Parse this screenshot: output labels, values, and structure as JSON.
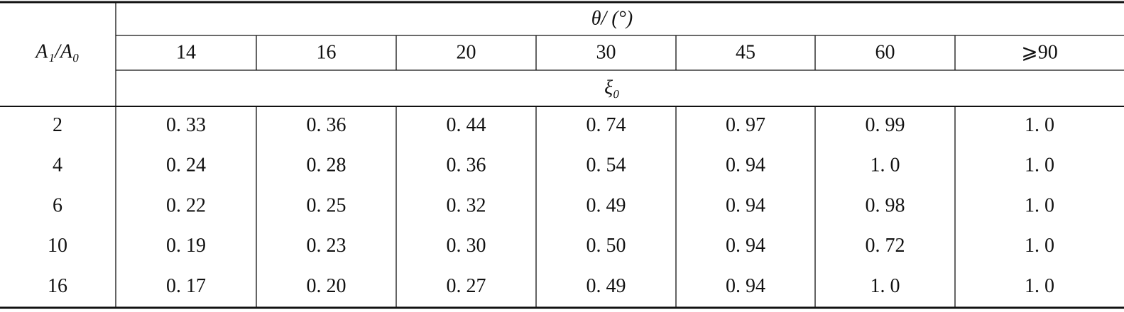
{
  "table": {
    "corner": "A₁/A₀",
    "angle_header": "θ/ (°)",
    "angles": [
      "14",
      "16",
      "20",
      "30",
      "45",
      "60",
      "⩾90"
    ],
    "coef_header": "ξ₀",
    "rows": [
      {
        "ratio": "2",
        "values": [
          "0. 33",
          "0. 36",
          "0. 44",
          "0. 74",
          "0. 97",
          "0. 99",
          "1. 0"
        ]
      },
      {
        "ratio": "4",
        "values": [
          "0. 24",
          "0. 28",
          "0. 36",
          "0. 54",
          "0. 94",
          "1. 0",
          "1. 0"
        ]
      },
      {
        "ratio": "6",
        "values": [
          "0. 22",
          "0. 25",
          "0. 32",
          "0. 49",
          "0. 94",
          "0. 98",
          "1. 0"
        ]
      },
      {
        "ratio": "10",
        "values": [
          "0. 19",
          "0. 23",
          "0. 30",
          "0. 50",
          "0. 94",
          "0. 72",
          "1. 0"
        ]
      },
      {
        "ratio": "16",
        "values": [
          "0. 17",
          "0. 20",
          "0. 27",
          "0. 49",
          "0. 94",
          "1. 0",
          "1. 0"
        ]
      }
    ]
  }
}
